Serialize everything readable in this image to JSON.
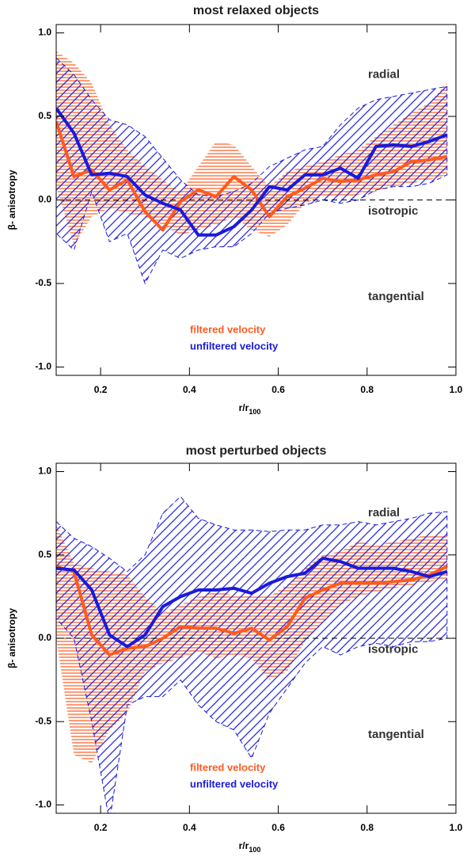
{
  "chart_data": [
    {
      "type": "line",
      "title": "most relaxed objects",
      "xlabel": {
        "text": "r/r",
        "subscript": "100"
      },
      "ylabel": "β- anisotropy",
      "x": [
        0.1,
        0.14,
        0.18,
        0.22,
        0.26,
        0.3,
        0.34,
        0.38,
        0.42,
        0.46,
        0.5,
        0.54,
        0.58,
        0.62,
        0.66,
        0.7,
        0.74,
        0.78,
        0.82,
        0.86,
        0.9,
        0.94,
        0.98
      ],
      "xlim": [
        0.1,
        1.0
      ],
      "xticks": [
        0.2,
        0.4,
        0.6,
        0.8,
        {
          "value": 1,
          "label": "1.0"
        }
      ],
      "ylim": [
        -1.05,
        1.05
      ],
      "yticks": [
        {
          "value": -1,
          "label": "-1.0"
        },
        -0.5,
        {
          "value": 0,
          "label": "0.0"
        },
        0.5,
        {
          "value": 1,
          "label": "1.0"
        }
      ],
      "reference_line": 0,
      "annotations": [
        "radial",
        "isotropic",
        "tangential"
      ],
      "series": [
        {
          "name": "filtered velocity",
          "color": "#ff5a1e",
          "values": [
            0.47,
            0.14,
            0.18,
            0.06,
            0.12,
            -0.07,
            -0.18,
            -0.01,
            0.06,
            0.02,
            0.14,
            0.06,
            -0.1,
            0.02,
            0.07,
            0.13,
            0.11,
            0.12,
            0.15,
            0.17,
            0.23,
            0.24,
            0.26
          ],
          "upper": [
            0.89,
            0.82,
            0.7,
            0.45,
            0.3,
            0.2,
            0.12,
            0.05,
            0.2,
            0.35,
            0.33,
            0.2,
            0.08,
            0.17,
            0.2,
            0.23,
            0.27,
            0.3,
            0.38,
            0.45,
            0.52,
            0.58,
            0.7
          ],
          "lower": [
            0.08,
            -0.27,
            -0.1,
            -0.05,
            -0.08,
            -0.1,
            -0.15,
            -0.21,
            -0.18,
            -0.15,
            -0.1,
            -0.18,
            -0.22,
            -0.15,
            -0.02,
            0.02,
            0.02,
            0.03,
            0.05,
            0.08,
            0.1,
            0.12,
            0.15
          ]
        },
        {
          "name": "unfiltered velocity",
          "color": "#1a1adc",
          "values": [
            0.55,
            0.4,
            0.15,
            0.16,
            0.14,
            0.03,
            -0.02,
            -0.06,
            -0.21,
            -0.21,
            -0.16,
            -0.06,
            0.08,
            0.06,
            0.15,
            0.15,
            0.19,
            0.13,
            0.32,
            0.33,
            0.32,
            0.35,
            0.39
          ],
          "upper": [
            0.85,
            0.75,
            0.6,
            0.48,
            0.45,
            0.38,
            0.25,
            0.12,
            0.03,
            0.02,
            0.05,
            0.1,
            0.2,
            0.25,
            0.3,
            0.32,
            0.45,
            0.55,
            0.6,
            0.62,
            0.64,
            0.66,
            0.68
          ],
          "lower": [
            -0.2,
            -0.3,
            0.05,
            -0.25,
            -0.2,
            -0.5,
            -0.3,
            -0.35,
            -0.3,
            -0.28,
            -0.28,
            -0.2,
            -0.08,
            -0.05,
            -0.03,
            0.0,
            -0.02,
            0.0,
            0.06,
            0.08,
            0.08,
            0.1,
            0.15
          ]
        }
      ]
    },
    {
      "type": "line",
      "title": "most perturbed objects",
      "xlabel": {
        "text": "r/r",
        "subscript": "100"
      },
      "ylabel": "β- anisotropy",
      "x": [
        0.1,
        0.14,
        0.18,
        0.22,
        0.26,
        0.3,
        0.34,
        0.38,
        0.42,
        0.46,
        0.5,
        0.54,
        0.58,
        0.62,
        0.66,
        0.7,
        0.74,
        0.78,
        0.82,
        0.86,
        0.9,
        0.94,
        0.98
      ],
      "xlim": [
        0.1,
        1.0
      ],
      "xticks": [
        0.2,
        0.4,
        0.6,
        0.8,
        {
          "value": 1,
          "label": "1.0"
        }
      ],
      "ylim": [
        -1.05,
        1.05
      ],
      "yticks": [
        {
          "value": -1,
          "label": "-1.0"
        },
        -0.5,
        {
          "value": 0,
          "label": "0.0"
        },
        0.5,
        {
          "value": 1,
          "label": "1.0"
        }
      ],
      "reference_line": 0,
      "annotations": [
        "radial",
        "isotropic",
        "tangential"
      ],
      "series": [
        {
          "name": "filtered velocity",
          "color": "#ff5a1e",
          "values": [
            0.43,
            0.4,
            0.02,
            -0.1,
            -0.06,
            -0.05,
            0.0,
            0.07,
            0.06,
            0.06,
            0.03,
            0.06,
            -0.01,
            0.07,
            0.24,
            0.29,
            0.33,
            0.33,
            0.33,
            0.34,
            0.35,
            0.38,
            0.43
          ],
          "upper": [
            0.68,
            0.45,
            0.42,
            0.4,
            0.38,
            0.25,
            0.15,
            0.2,
            0.25,
            0.28,
            0.26,
            0.25,
            0.25,
            0.32,
            0.42,
            0.5,
            0.52,
            0.58,
            0.56,
            0.58,
            0.6,
            0.62,
            0.62
          ],
          "lower": [
            0.0,
            -0.7,
            -0.75,
            -0.55,
            -0.45,
            -0.2,
            -0.15,
            -0.12,
            -0.08,
            -0.12,
            -0.1,
            -0.12,
            -0.25,
            -0.2,
            -0.02,
            0.1,
            0.2,
            0.25,
            0.28,
            0.3,
            0.32,
            0.34,
            0.35
          ]
        },
        {
          "name": "unfiltered velocity",
          "color": "#1a1adc",
          "values": [
            0.42,
            0.41,
            0.29,
            0.02,
            -0.05,
            0.02,
            0.19,
            0.25,
            0.29,
            0.29,
            0.3,
            0.27,
            0.33,
            0.37,
            0.39,
            0.48,
            0.46,
            0.42,
            0.42,
            0.42,
            0.4,
            0.37,
            0.4
          ],
          "upper": [
            0.7,
            0.6,
            0.55,
            0.48,
            0.4,
            0.5,
            0.75,
            0.85,
            0.72,
            0.68,
            0.65,
            0.65,
            0.64,
            0.65,
            0.65,
            0.68,
            0.68,
            0.7,
            0.68,
            0.7,
            0.72,
            0.75,
            0.76
          ],
          "lower": [
            0.12,
            0.0,
            -0.5,
            -1.1,
            -0.4,
            -0.35,
            -0.35,
            -0.25,
            -0.4,
            -0.5,
            -0.55,
            -0.72,
            -0.45,
            -0.3,
            -0.15,
            -0.05,
            -0.1,
            -0.05,
            -0.03,
            -0.05,
            -0.02,
            -0.02,
            0.0
          ]
        }
      ]
    }
  ]
}
